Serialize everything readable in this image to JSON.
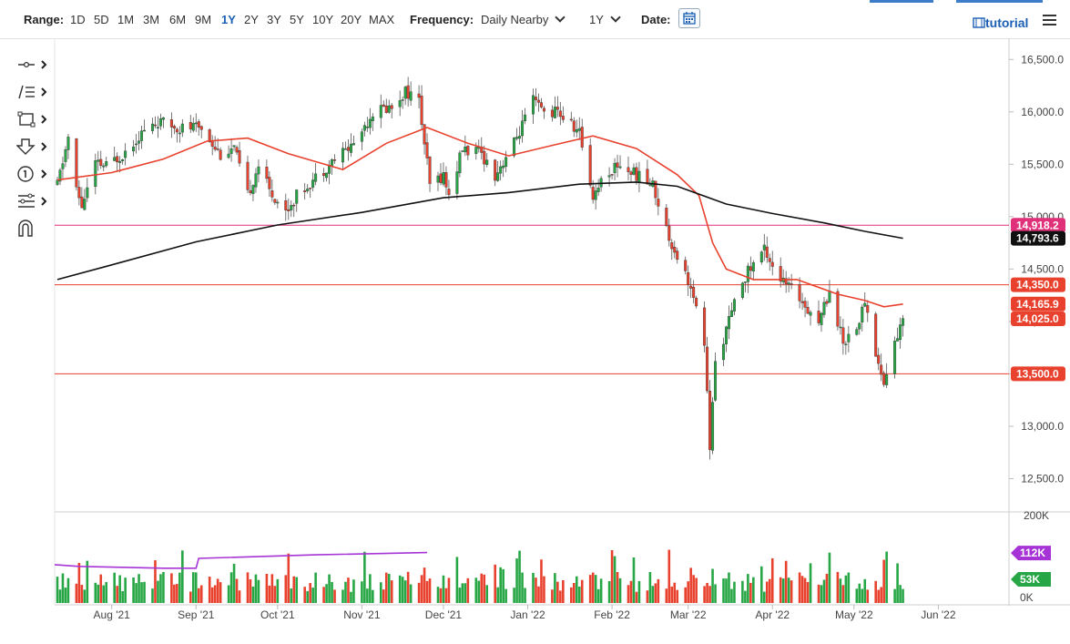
{
  "toolbar": {
    "range_label": "Range:",
    "ranges": [
      "1D",
      "5D",
      "1M",
      "3M",
      "6M",
      "9M",
      "1Y",
      "2Y",
      "3Y",
      "5Y",
      "10Y",
      "20Y",
      "MAX"
    ],
    "active_range": "1Y",
    "frequency_label": "Frequency:",
    "frequency_value": "Daily Nearby",
    "period_value": "1Y",
    "date_label": "Date:",
    "tutorial_label": "tutorial"
  },
  "colors": {
    "up": "#27a645",
    "down": "#e8412d",
    "ma_fast": "#e8412d",
    "ma_slow": "#111111",
    "level_line": "#e8412d",
    "level_line_pink": "#e0307a",
    "volume_avg": "#a633d6"
  },
  "tools": [
    "crosshair-tool",
    "trend-line-tool",
    "rectangle-tool",
    "arrow-down-tool",
    "counter-tool",
    "fibonacci-tool",
    "magnet-tool"
  ],
  "chart_data": {
    "type": "candlestick",
    "price_axis": {
      "ticks": [
        16500,
        16000,
        15500,
        15000,
        14500,
        14000,
        13500,
        13000,
        12500
      ],
      "tick_labels": [
        "16,500.0",
        "16,000.0",
        "15,500.0",
        "15,000.0",
        "14,500.0",
        "14,000.0",
        "13,500.0",
        "13,000.0",
        "12,500.0"
      ],
      "ylim": [
        12200,
        16650
      ]
    },
    "x_axis": {
      "labels": [
        "Aug '21",
        "Sep '21",
        "Oct '21",
        "Nov '21",
        "Dec '21",
        "Jan '22",
        "Feb '22",
        "Mar '22",
        "Apr '22",
        "May '22",
        "Jun '22"
      ],
      "dates": [
        "2021-08-01",
        "2021-09-01",
        "2021-10-01",
        "2021-11-01",
        "2021-12-01",
        "2022-01-01",
        "2022-02-01",
        "2022-03-01",
        "2022-04-01",
        "2022-05-01",
        "2022-06-01"
      ],
      "start_date": "2021-07-11",
      "end_date": "2022-06-27"
    },
    "price_path": [
      [
        "2021-07-12",
        15300
      ],
      [
        "2021-07-16",
        15750
      ],
      [
        "2021-07-19",
        15250
      ],
      [
        "2021-07-21",
        15100
      ],
      [
        "2021-07-26",
        15500
      ],
      [
        "2021-07-30",
        15480
      ],
      [
        "2021-08-05",
        15600
      ],
      [
        "2021-08-12",
        15800
      ],
      [
        "2021-08-18",
        15900
      ],
      [
        "2021-08-26",
        15850
      ],
      [
        "2021-09-03",
        15850
      ],
      [
        "2021-09-10",
        15600
      ],
      [
        "2021-09-15",
        15650
      ],
      [
        "2021-09-20",
        15200
      ],
      [
        "2021-09-24",
        15500
      ],
      [
        "2021-09-28",
        15250
      ],
      [
        "2021-10-04",
        15050
      ],
      [
        "2021-10-08",
        15200
      ],
      [
        "2021-10-14",
        15350
      ],
      [
        "2021-10-22",
        15550
      ],
      [
        "2021-10-29",
        15700
      ],
      [
        "2021-11-05",
        16000
      ],
      [
        "2021-11-12",
        16050
      ],
      [
        "2021-11-17",
        16200
      ],
      [
        "2021-11-22",
        16100
      ],
      [
        "2021-11-26",
        15300
      ],
      [
        "2021-12-01",
        15400
      ],
      [
        "2021-12-03",
        15200
      ],
      [
        "2021-12-08",
        15650
      ],
      [
        "2021-12-15",
        15600
      ],
      [
        "2021-12-20",
        15400
      ],
      [
        "2021-12-27",
        15700
      ],
      [
        "2022-01-03",
        16100
      ],
      [
        "2022-01-07",
        16000
      ],
      [
        "2022-01-12",
        16000
      ],
      [
        "2022-01-20",
        15800
      ],
      [
        "2022-01-25",
        15200
      ],
      [
        "2022-01-28",
        15350
      ],
      [
        "2022-02-03",
        15500
      ],
      [
        "2022-02-10",
        15400
      ],
      [
        "2022-02-16",
        15300
      ],
      [
        "2022-02-22",
        14800
      ],
      [
        "2022-03-01",
        14400
      ],
      [
        "2022-03-07",
        13800
      ],
      [
        "2022-03-09",
        12800
      ],
      [
        "2022-03-11",
        13600
      ],
      [
        "2022-03-16",
        14000
      ],
      [
        "2022-03-21",
        14400
      ],
      [
        "2022-03-29",
        14700
      ],
      [
        "2022-04-04",
        14400
      ],
      [
        "2022-04-12",
        14200
      ],
      [
        "2022-04-18",
        14000
      ],
      [
        "2022-04-22",
        14300
      ],
      [
        "2022-04-27",
        13800
      ],
      [
        "2022-05-03",
        14000
      ],
      [
        "2022-05-05",
        14200
      ],
      [
        "2022-05-09",
        13700
      ],
      [
        "2022-05-12",
        13400
      ],
      [
        "2022-05-16",
        13800
      ],
      [
        "2022-05-19",
        14000
      ]
    ],
    "moving_average_fast": [
      [
        "2021-07-12",
        15350
      ],
      [
        "2021-08-01",
        15420
      ],
      [
        "2021-08-20",
        15550
      ],
      [
        "2021-09-05",
        15720
      ],
      [
        "2021-09-20",
        15750
      ],
      [
        "2021-10-05",
        15600
      ],
      [
        "2021-10-25",
        15450
      ],
      [
        "2021-11-10",
        15700
      ],
      [
        "2021-11-25",
        15850
      ],
      [
        "2021-12-10",
        15700
      ],
      [
        "2021-12-25",
        15580
      ],
      [
        "2022-01-10",
        15680
      ],
      [
        "2022-01-25",
        15770
      ],
      [
        "2022-02-10",
        15650
      ],
      [
        "2022-02-25",
        15400
      ],
      [
        "2022-03-05",
        15200
      ],
      [
        "2022-03-10",
        14750
      ],
      [
        "2022-03-15",
        14500
      ],
      [
        "2022-03-25",
        14400
      ],
      [
        "2022-04-10",
        14400
      ],
      [
        "2022-04-25",
        14260
      ],
      [
        "2022-05-05",
        14200
      ],
      [
        "2022-05-12",
        14140
      ],
      [
        "2022-05-19",
        14166
      ]
    ],
    "moving_average_slow": [
      [
        "2021-07-12",
        14400
      ],
      [
        "2021-08-01",
        14540
      ],
      [
        "2021-09-01",
        14760
      ],
      [
        "2021-10-01",
        14920
      ],
      [
        "2021-11-01",
        15040
      ],
      [
        "2021-12-01",
        15180
      ],
      [
        "2021-12-25",
        15230
      ],
      [
        "2022-01-20",
        15310
      ],
      [
        "2022-02-10",
        15330
      ],
      [
        "2022-02-25",
        15290
      ],
      [
        "2022-03-15",
        15120
      ],
      [
        "2022-04-01",
        15030
      ],
      [
        "2022-04-20",
        14940
      ],
      [
        "2022-05-05",
        14860
      ],
      [
        "2022-05-19",
        14793.6
      ]
    ],
    "levels": [
      {
        "value": 14918.2,
        "label": "14,918.2",
        "style": "pink"
      },
      {
        "value": 14350.0,
        "label": "14,350.0",
        "style": "red"
      },
      {
        "value": 13500.0,
        "label": "13,500.0",
        "style": "red"
      }
    ],
    "price_tags": [
      {
        "value": 14793.6,
        "label": "14,793.6",
        "color": "#111111"
      },
      {
        "value": 14165.9,
        "label": "14,165.9",
        "color": "#e8412d"
      },
      {
        "value": 14025.0,
        "label": "14,025.0",
        "color": "#e8412d"
      }
    ],
    "volume": {
      "axis_labels": [
        "200K",
        "0K"
      ],
      "tags": [
        {
          "value": 112,
          "label": "112K",
          "color": "#a633d6"
        },
        {
          "value": 53,
          "label": "53K",
          "color": "#27a645"
        }
      ],
      "average_line": [
        [
          "2021-07-11",
          86
        ],
        [
          "2021-07-20",
          82
        ],
        [
          "2021-08-05",
          80
        ],
        [
          "2021-08-20",
          78
        ],
        [
          "2021-09-01",
          78
        ],
        [
          "2021-09-02",
          100
        ],
        [
          "2021-10-15",
          108
        ],
        [
          "2021-11-25",
          113
        ]
      ]
    }
  }
}
